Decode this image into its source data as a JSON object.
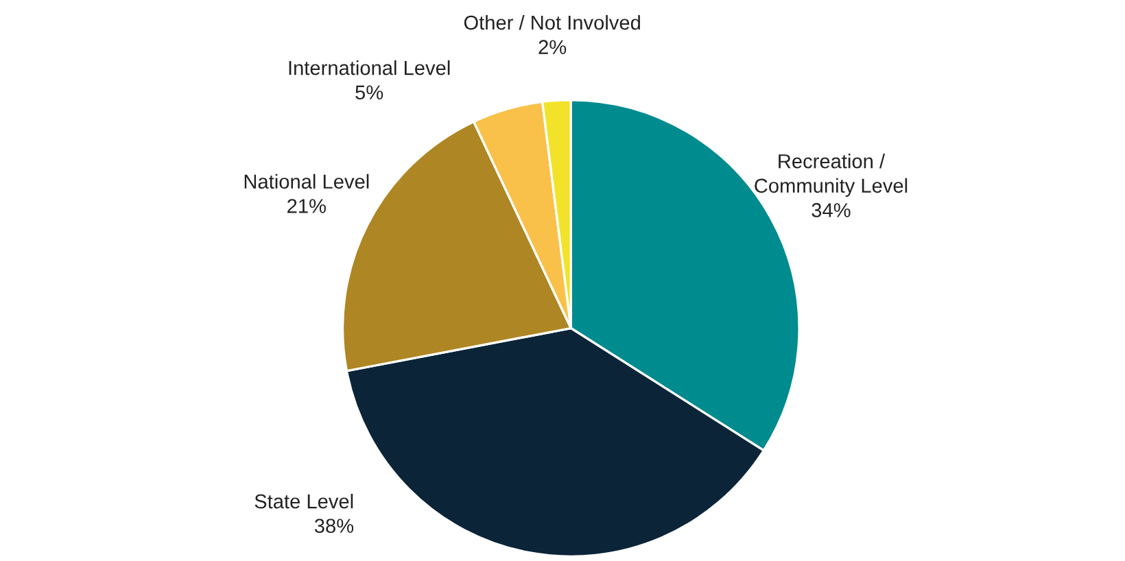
{
  "chart_data": {
    "type": "pie",
    "categories": [
      "Recreation /\nCommunity Level",
      "State Level",
      "National Level",
      "International Level",
      "Other / Not Involved"
    ],
    "values": [
      34,
      38,
      21,
      5,
      2
    ],
    "value_labels": [
      "34%",
      "38%",
      "21%",
      "5%",
      "2%"
    ],
    "colors": [
      "#008b8f",
      "#0b2438",
      "#ae8623",
      "#f9c04a",
      "#f2e32a"
    ]
  }
}
